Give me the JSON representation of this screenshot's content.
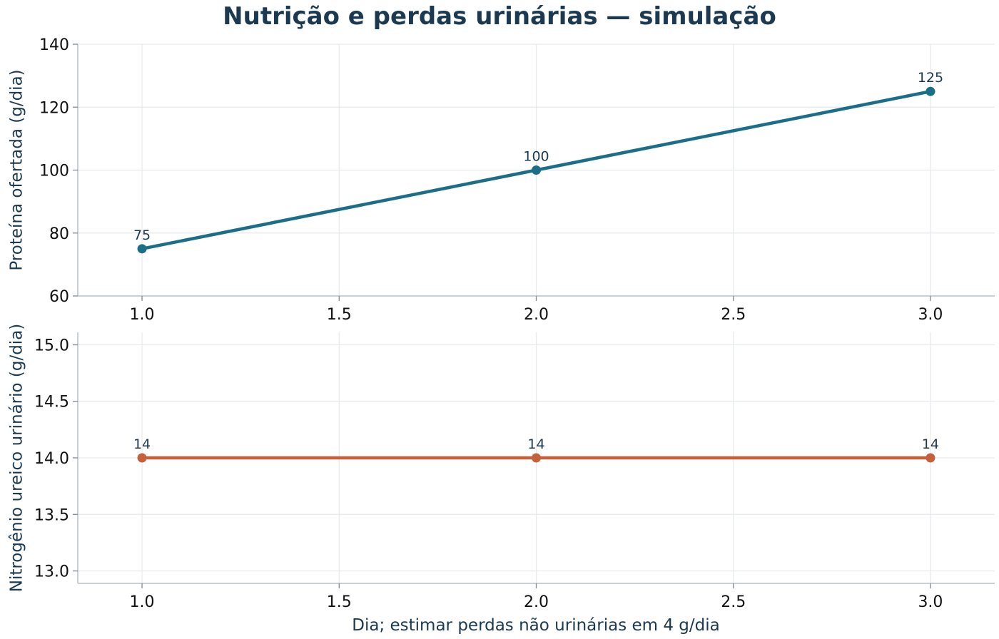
{
  "chart_data": {
    "title": "Nutrição e perdas urinárias — simulação",
    "xlabel": "Dia; estimar perdas não urinárias em 4 g/dia",
    "panels": [
      {
        "type": "line",
        "x": [
          1.0,
          2.0,
          3.0
        ],
        "values": [
          75,
          100,
          125
        ],
        "data_labels": [
          "75",
          "100",
          "125"
        ],
        "ylabel": "Proteína ofertada (g/dia)",
        "xlim": [
          0.837,
          3.163
        ],
        "ylim": [
          60,
          140
        ],
        "xticks": [
          1.0,
          1.5,
          2.0,
          2.5,
          3.0
        ],
        "xtick_labels": [
          "1.0",
          "1.5",
          "2.0",
          "2.5",
          "3.0"
        ],
        "yticks": [
          60,
          80,
          100,
          120,
          140
        ],
        "ytick_labels": [
          "60",
          "80",
          "100",
          "120",
          "140"
        ],
        "color": "#1a6e87",
        "grid": true
      },
      {
        "type": "line",
        "x": [
          1.0,
          2.0,
          3.0
        ],
        "values": [
          14,
          14,
          14
        ],
        "data_labels": [
          "14",
          "14",
          "14"
        ],
        "ylabel": "Nitrogênio ureico urinário (g/dia)",
        "xlim": [
          0.837,
          3.163
        ],
        "ylim": [
          12.89,
          15.11
        ],
        "xticks": [
          1.0,
          1.5,
          2.0,
          2.5,
          3.0
        ],
        "xtick_labels": [
          "1.0",
          "1.5",
          "2.0",
          "2.5",
          "3.0"
        ],
        "yticks": [
          13.0,
          13.5,
          14.0,
          14.5,
          15.0
        ],
        "ytick_labels": [
          "13.0",
          "13.5",
          "14.0",
          "14.5",
          "15.0"
        ],
        "color": "#c4603b",
        "grid": true
      }
    ]
  }
}
